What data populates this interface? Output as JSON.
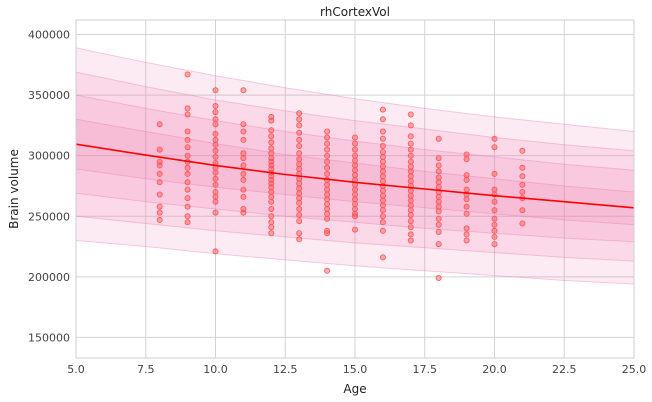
{
  "chart_data": {
    "type": "scatter",
    "title": "rhCortexVol",
    "xlabel": "Age",
    "ylabel": "Brain volume",
    "xlim": [
      5.0,
      25.0
    ],
    "ylim": [
      133000,
      412000
    ],
    "x_ticks": [
      5.0,
      7.5,
      10.0,
      12.5,
      15.0,
      17.5,
      20.0,
      22.5,
      25.0
    ],
    "x_tick_labels": [
      "5.0",
      "7.5",
      "10.0",
      "12.5",
      "15.0",
      "17.5",
      "20.0",
      "22.5",
      "25.0"
    ],
    "y_ticks": [
      150000,
      200000,
      250000,
      300000,
      350000,
      400000
    ],
    "y_tick_labels": [
      "150000",
      "200000",
      "250000",
      "300000",
      "350000",
      "400000"
    ],
    "grid": true,
    "legend": "none",
    "colors": {
      "fit_line": "#ff0000",
      "points": "#ff4d4d",
      "bands": "#ee6fa8"
    },
    "fit_line": {
      "x": [
        5,
        7.5,
        10,
        12.5,
        15,
        17.5,
        20,
        22.5,
        25
      ],
      "y": [
        309500,
        300500,
        292000,
        284500,
        278000,
        272500,
        267000,
        262000,
        257000
      ]
    },
    "centile_bands": [
      {
        "lower": [
          230000,
          225000,
          219000,
          214000,
          209000,
          205000,
          201000,
          197000,
          194000
        ],
        "upper": [
          389000,
          377000,
          366000,
          356000,
          347000,
          339000,
          332000,
          326000,
          320000
        ]
      },
      {
        "lower": [
          250000,
          244000,
          238000,
          233000,
          228000,
          224000,
          220000,
          216000,
          213000
        ],
        "upper": [
          369000,
          357000,
          346000,
          337000,
          329000,
          322000,
          315000,
          309000,
          304000
        ]
      },
      {
        "lower": [
          269000,
          262000,
          256000,
          250000,
          245000,
          240000,
          236000,
          232000,
          229000
        ],
        "upper": [
          350000,
          339000,
          329000,
          320000,
          312000,
          305000,
          299000,
          293000,
          288000
        ]
      },
      {
        "lower": [
          289000,
          281000,
          274000,
          268000,
          262000,
          257000,
          252000,
          247000,
          243000
        ],
        "upper": [
          330000,
          320000,
          310000,
          301000,
          294000,
          287000,
          281000,
          275000,
          270000
        ]
      }
    ],
    "points": [
      [
        8,
        326000
      ],
      [
        8,
        305000
      ],
      [
        8,
        295000
      ],
      [
        8,
        292000
      ],
      [
        8,
        285000
      ],
      [
        8,
        278000
      ],
      [
        8,
        268000
      ],
      [
        8,
        258000
      ],
      [
        8,
        253000
      ],
      [
        8,
        247000
      ],
      [
        9,
        367000
      ],
      [
        9,
        339000
      ],
      [
        9,
        334000
      ],
      [
        9,
        320000
      ],
      [
        9,
        313000
      ],
      [
        9,
        307000
      ],
      [
        9,
        300000
      ],
      [
        9,
        295000
      ],
      [
        9,
        290000
      ],
      [
        9,
        285000
      ],
      [
        9,
        278000
      ],
      [
        9,
        272000
      ],
      [
        9,
        265000
      ],
      [
        9,
        258000
      ],
      [
        9,
        250000
      ],
      [
        9,
        245000
      ],
      [
        10,
        354000
      ],
      [
        10,
        341000
      ],
      [
        10,
        336000
      ],
      [
        10,
        330000
      ],
      [
        10,
        326000
      ],
      [
        10,
        318000
      ],
      [
        10,
        313000
      ],
      [
        10,
        309000
      ],
      [
        10,
        304000
      ],
      [
        10,
        299000
      ],
      [
        10,
        294000
      ],
      [
        10,
        290000
      ],
      [
        10,
        286000
      ],
      [
        10,
        281000
      ],
      [
        10,
        276000
      ],
      [
        10,
        270000
      ],
      [
        10,
        266000
      ],
      [
        10,
        262000
      ],
      [
        10,
        253000
      ],
      [
        10,
        221000
      ],
      [
        11,
        354000
      ],
      [
        11,
        326000
      ],
      [
        11,
        320000
      ],
      [
        11,
        313000
      ],
      [
        11,
        302000
      ],
      [
        11,
        298000
      ],
      [
        11,
        292000
      ],
      [
        11,
        285000
      ],
      [
        11,
        280000
      ],
      [
        11,
        272000
      ],
      [
        11,
        266000
      ],
      [
        11,
        256000
      ],
      [
        11,
        253000
      ],
      [
        12,
        329000
      ],
      [
        12,
        321000
      ],
      [
        12,
        316000
      ],
      [
        12,
        311000
      ],
      [
        12,
        306000
      ],
      [
        12,
        302000
      ],
      [
        12,
        298000
      ],
      [
        12,
        295000
      ],
      [
        12,
        292000
      ],
      [
        12,
        289000
      ],
      [
        12,
        286000
      ],
      [
        12,
        283000
      ],
      [
        12,
        280000
      ],
      [
        12,
        277000
      ],
      [
        12,
        274000
      ],
      [
        12,
        270000
      ],
      [
        12,
        266000
      ],
      [
        12,
        262000
      ],
      [
        12,
        256000
      ],
      [
        12,
        250000
      ],
      [
        12,
        245000
      ],
      [
        12,
        241000
      ],
      [
        12,
        236000
      ],
      [
        12,
        332000
      ],
      [
        13,
        335000
      ],
      [
        13,
        330000
      ],
      [
        13,
        325000
      ],
      [
        13,
        319000
      ],
      [
        13,
        313000
      ],
      [
        13,
        308000
      ],
      [
        13,
        302000
      ],
      [
        13,
        297000
      ],
      [
        13,
        293000
      ],
      [
        13,
        289000
      ],
      [
        13,
        285000
      ],
      [
        13,
        281000
      ],
      [
        13,
        277000
      ],
      [
        13,
        273000
      ],
      [
        13,
        269000
      ],
      [
        13,
        265000
      ],
      [
        13,
        261000
      ],
      [
        13,
        256000
      ],
      [
        13,
        251000
      ],
      [
        13,
        246000
      ],
      [
        13,
        236000
      ],
      [
        13,
        231000
      ],
      [
        14,
        320000
      ],
      [
        14,
        315000
      ],
      [
        14,
        310000
      ],
      [
        14,
        305000
      ],
      [
        14,
        300000
      ],
      [
        14,
        295000
      ],
      [
        14,
        290000
      ],
      [
        14,
        285000
      ],
      [
        14,
        280000
      ],
      [
        14,
        276000
      ],
      [
        14,
        272000
      ],
      [
        14,
        268000
      ],
      [
        14,
        264000
      ],
      [
        14,
        260000
      ],
      [
        14,
        256000
      ],
      [
        14,
        252000
      ],
      [
        14,
        248000
      ],
      [
        14,
        238000
      ],
      [
        14,
        236000
      ],
      [
        14,
        205000
      ],
      [
        15,
        315000
      ],
      [
        15,
        310000
      ],
      [
        15,
        305000
      ],
      [
        15,
        300000
      ],
      [
        15,
        296000
      ],
      [
        15,
        292000
      ],
      [
        15,
        288000
      ],
      [
        15,
        284000
      ],
      [
        15,
        280000
      ],
      [
        15,
        276000
      ],
      [
        15,
        272000
      ],
      [
        15,
        268000
      ],
      [
        15,
        264000
      ],
      [
        15,
        260000
      ],
      [
        15,
        256000
      ],
      [
        15,
        252000
      ],
      [
        15,
        250000
      ],
      [
        15,
        239000
      ],
      [
        16,
        338000
      ],
      [
        16,
        330000
      ],
      [
        16,
        320000
      ],
      [
        16,
        314000
      ],
      [
        16,
        308000
      ],
      [
        16,
        303000
      ],
      [
        16,
        299000
      ],
      [
        16,
        295000
      ],
      [
        16,
        291000
      ],
      [
        16,
        287000
      ],
      [
        16,
        283000
      ],
      [
        16,
        279000
      ],
      [
        16,
        275000
      ],
      [
        16,
        271000
      ],
      [
        16,
        267000
      ],
      [
        16,
        263000
      ],
      [
        16,
        259000
      ],
      [
        16,
        255000
      ],
      [
        16,
        250000
      ],
      [
        16,
        245000
      ],
      [
        16,
        238000
      ],
      [
        16,
        216000
      ],
      [
        17,
        334000
      ],
      [
        17,
        325000
      ],
      [
        17,
        316000
      ],
      [
        17,
        310000
      ],
      [
        17,
        305000
      ],
      [
        17,
        300000
      ],
      [
        17,
        295000
      ],
      [
        17,
        291000
      ],
      [
        17,
        287000
      ],
      [
        17,
        283000
      ],
      [
        17,
        279000
      ],
      [
        17,
        275000
      ],
      [
        17,
        271000
      ],
      [
        17,
        267000
      ],
      [
        17,
        263000
      ],
      [
        17,
        259000
      ],
      [
        17,
        255000
      ],
      [
        17,
        251000
      ],
      [
        17,
        246000
      ],
      [
        17,
        241000
      ],
      [
        17,
        235000
      ],
      [
        17,
        230000
      ],
      [
        18,
        314000
      ],
      [
        18,
        298000
      ],
      [
        18,
        292000
      ],
      [
        18,
        287000
      ],
      [
        18,
        282000
      ],
      [
        18,
        278000
      ],
      [
        18,
        274000
      ],
      [
        18,
        270000
      ],
      [
        18,
        266000
      ],
      [
        18,
        262000
      ],
      [
        18,
        258000
      ],
      [
        18,
        254000
      ],
      [
        18,
        248000
      ],
      [
        18,
        243000
      ],
      [
        18,
        237000
      ],
      [
        18,
        227000
      ],
      [
        18,
        199000
      ],
      [
        19,
        301000
      ],
      [
        19,
        297000
      ],
      [
        19,
        284000
      ],
      [
        19,
        280000
      ],
      [
        19,
        272000
      ],
      [
        19,
        268000
      ],
      [
        19,
        264000
      ],
      [
        19,
        258000
      ],
      [
        19,
        252000
      ],
      [
        19,
        240000
      ],
      [
        19,
        235000
      ],
      [
        19,
        230000
      ],
      [
        20,
        314000
      ],
      [
        20,
        307000
      ],
      [
        20,
        285000
      ],
      [
        20,
        272000
      ],
      [
        20,
        268000
      ],
      [
        20,
        262000
      ],
      [
        20,
        255000
      ],
      [
        20,
        248000
      ],
      [
        20,
        243000
      ],
      [
        20,
        238000
      ],
      [
        20,
        233000
      ],
      [
        20,
        227000
      ],
      [
        21,
        304000
      ],
      [
        21,
        290000
      ],
      [
        21,
        283000
      ],
      [
        21,
        276000
      ],
      [
        21,
        270000
      ],
      [
        21,
        265000
      ],
      [
        21,
        255000
      ],
      [
        21,
        244000
      ]
    ]
  }
}
